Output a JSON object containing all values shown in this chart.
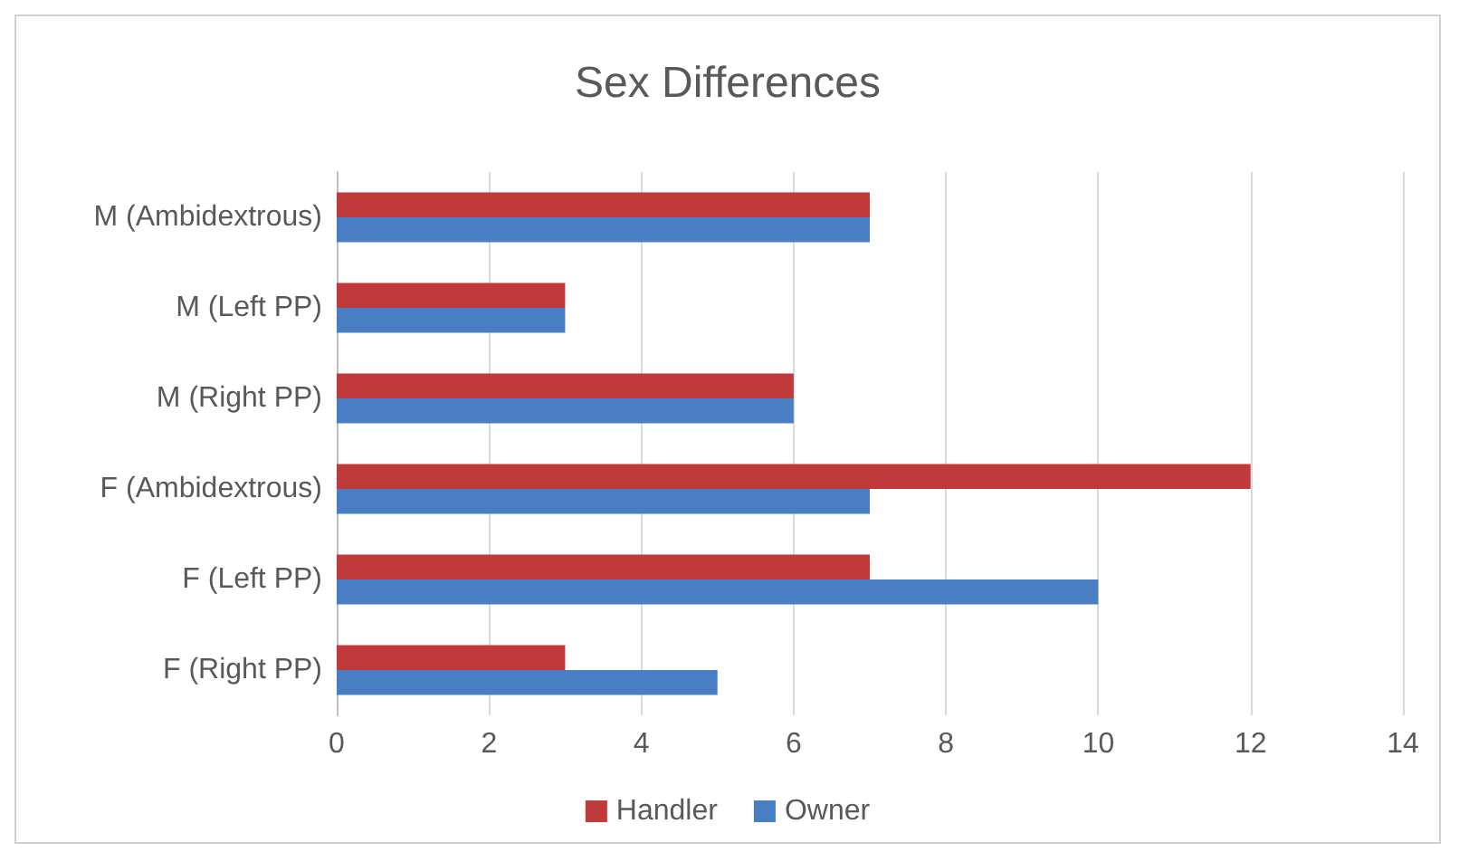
{
  "chart_data": {
    "type": "bar",
    "title": "Sex Differences",
    "orientation": "horizontal",
    "categories": [
      "M (Ambidextrous)",
      "M (Left PP)",
      "M (Right PP)",
      "F (Ambidextrous)",
      "F (Left PP)",
      "F (Right PP)"
    ],
    "series": [
      {
        "name": "Handler",
        "color": "#c0393b",
        "values": [
          7,
          3,
          6,
          12,
          7,
          3
        ]
      },
      {
        "name": "Owner",
        "color": "#4a7ec4",
        "values": [
          7,
          3,
          6,
          7,
          10,
          5
        ]
      }
    ],
    "xlim": [
      0,
      14
    ],
    "xticks": [
      0,
      2,
      4,
      6,
      8,
      10,
      12,
      14
    ],
    "grid": "x",
    "legend": "bottom"
  }
}
